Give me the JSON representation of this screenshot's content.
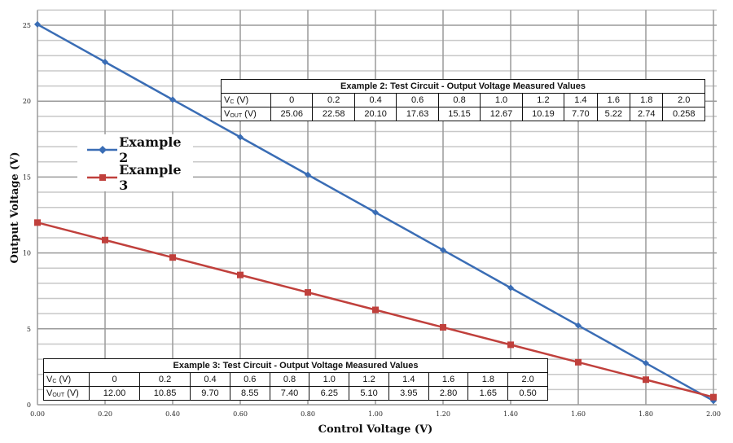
{
  "chart_data": {
    "type": "line",
    "xlabel": "Control Voltage (V)",
    "ylabel": "Output Voltage (V)",
    "xlim": [
      0,
      2.0
    ],
    "ylim": [
      0,
      26
    ],
    "xticks": [
      "0.00",
      "0.20",
      "0.40",
      "0.60",
      "0.80",
      "1.00",
      "1.20",
      "1.40",
      "1.60",
      "1.80",
      "2.00"
    ],
    "yticks": [
      "0",
      "5",
      "10",
      "15",
      "20",
      "25"
    ],
    "grid": true,
    "legend_placement": "left",
    "x": [
      0,
      0.2,
      0.4,
      0.6,
      0.8,
      1.0,
      1.2,
      1.4,
      1.6,
      1.8,
      2.0
    ],
    "series": [
      {
        "name": "Example 2",
        "color": "#3a6db5",
        "marker": "diamond",
        "values": [
          25.06,
          22.58,
          20.1,
          17.63,
          15.15,
          12.67,
          10.19,
          7.7,
          5.22,
          2.74,
          0.258
        ]
      },
      {
        "name": "Example 3",
        "color": "#c0403c",
        "marker": "square",
        "values": [
          12.0,
          10.85,
          9.7,
          8.55,
          7.4,
          6.25,
          5.1,
          3.95,
          2.8,
          1.65,
          0.5
        ]
      }
    ]
  },
  "tables": [
    {
      "title": "Example 2: Test Circuit - Output Voltage Measured Values",
      "row1_label": "V",
      "row1_sub": "C",
      "row1_unit": " (V)",
      "row2_label": "V",
      "row2_sub": "OUT",
      "row2_unit": " (V)",
      "vc": [
        "0",
        "0.2",
        "0.4",
        "0.6",
        "0.8",
        "1.0",
        "1.2",
        "1.4",
        "1.6",
        "1.8",
        "2.0"
      ],
      "vout": [
        "25.06",
        "22.58",
        "20.10",
        "17.63",
        "15.15",
        "12.67",
        "10.19",
        "7.70",
        "5.22",
        "2.74",
        "0.258"
      ]
    },
    {
      "title": "Example 3: Test Circuit - Output Voltage Measured Values",
      "row1_label": "V",
      "row1_sub": "C",
      "row1_unit": " (V)",
      "row2_label": "V",
      "row2_sub": "OUT",
      "row2_unit": " (V)",
      "vc": [
        "0",
        "0.2",
        "0.4",
        "0.6",
        "0.8",
        "1.0",
        "1.2",
        "1.4",
        "1.6",
        "1.8",
        "2.0"
      ],
      "vout": [
        "12.00",
        "10.85",
        "9.70",
        "8.55",
        "7.40",
        "6.25",
        "5.10",
        "3.95",
        "2.80",
        "1.65",
        "0.50"
      ]
    }
  ]
}
